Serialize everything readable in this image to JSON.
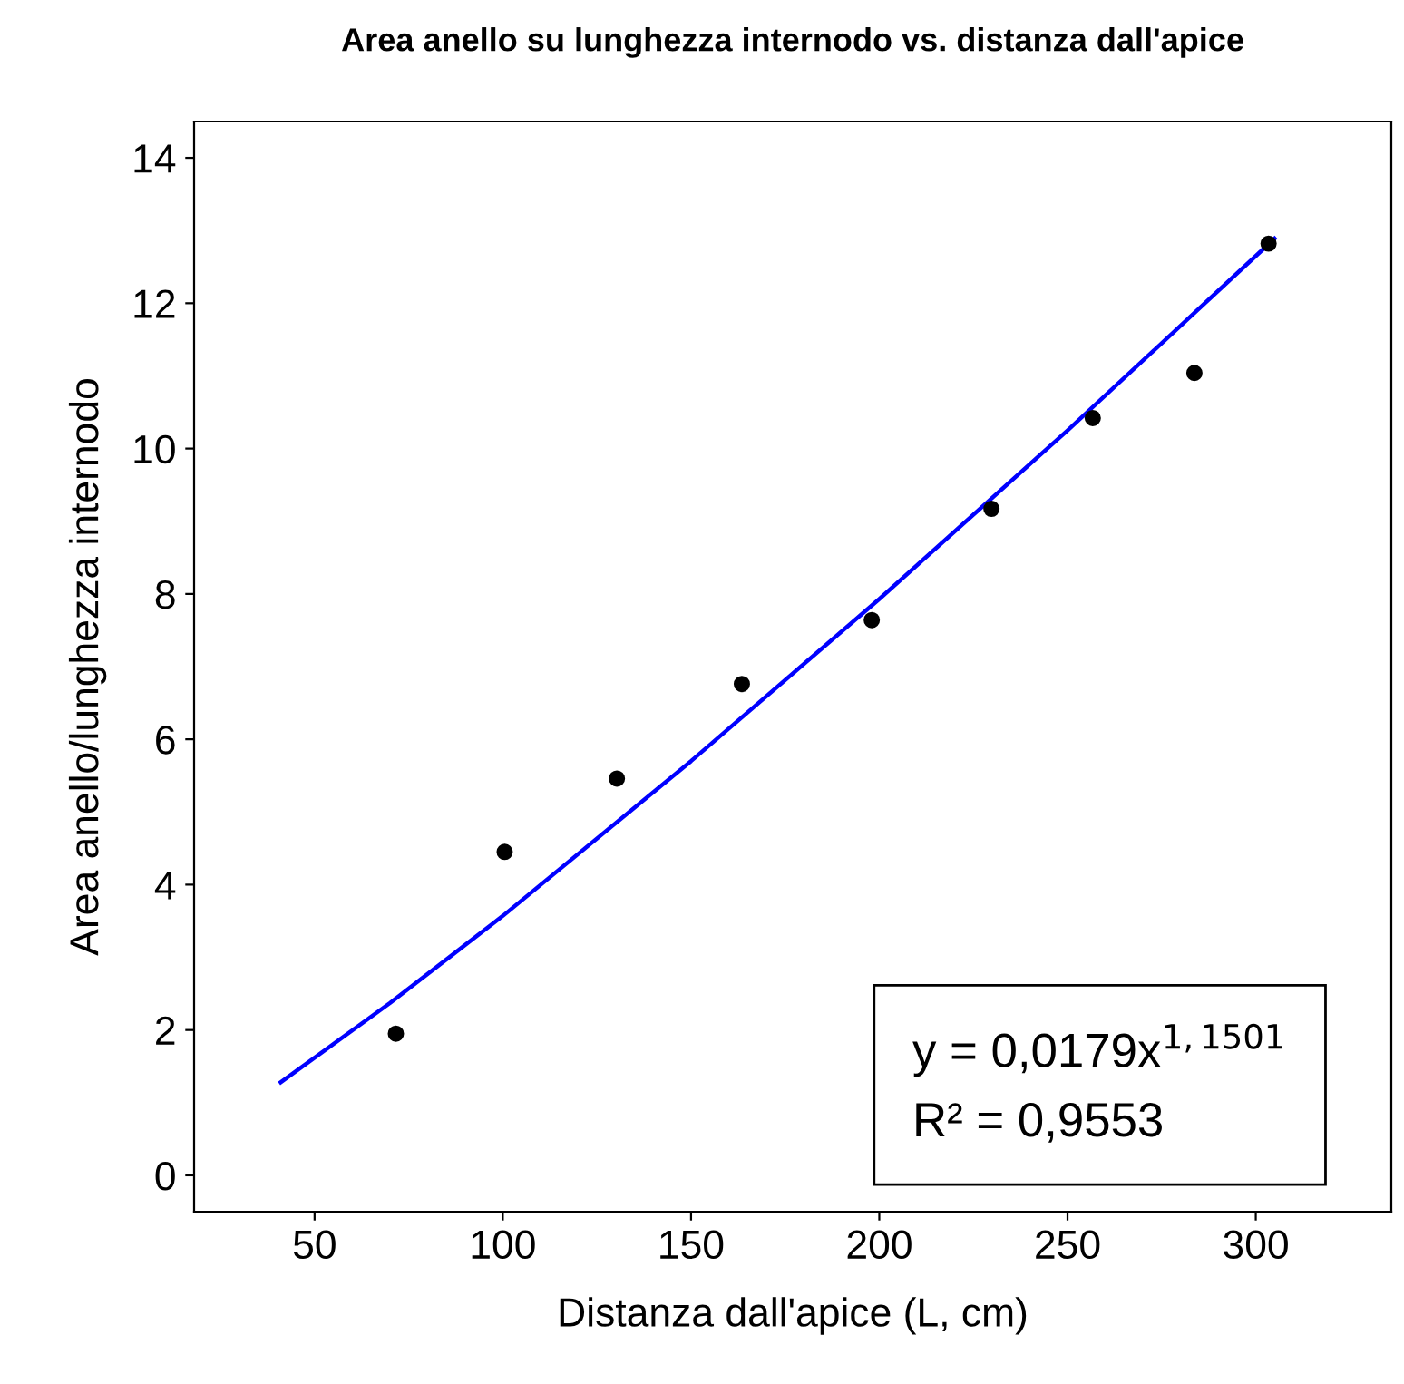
{
  "chart_data": {
    "type": "scatter",
    "title": "Area anello su lunghezza internodo vs. distanza dall'apice",
    "xlabel": "Distanza dall'apice (L, cm)",
    "ylabel": "Area anello/lunghezza internodo",
    "xlim": [
      18,
      336
    ],
    "ylim": [
      -0.5,
      14.5
    ],
    "xticks": [
      50,
      100,
      150,
      200,
      250,
      300
    ],
    "yticks": [
      0,
      2,
      4,
      6,
      8,
      10,
      12,
      14
    ],
    "grid": false,
    "legend": false,
    "marker": "circle",
    "x": [
      71.6,
      100.5,
      130.3,
      163.5,
      198,
      229.8,
      256.7,
      283.7,
      303.4
    ],
    "series": [
      {
        "color": "#000000",
        "values": [
          1.95,
          4.45,
          5.46,
          6.76,
          7.64,
          9.17,
          10.42,
          11.04,
          12.82
        ]
      },
      {
        "type": "line",
        "color": "#0000ff",
        "line_style": "solid",
        "marker": "none",
        "x": [
          41,
          70,
          100,
          150,
          200,
          250,
          305
        ],
        "values": [
          1.28,
          2.37,
          3.57,
          5.7,
          7.93,
          10.25,
          12.89
        ]
      }
    ],
    "annotations": [
      "y = 0,0179x$^{1,1501}$\nR² = 0,9553"
    ]
  }
}
